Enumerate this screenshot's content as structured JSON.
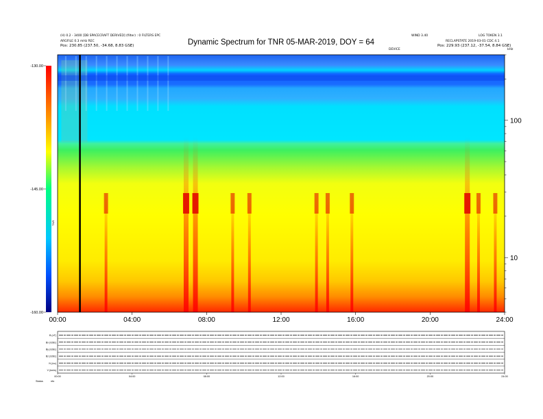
{
  "header": {
    "title": "Dynamic Spectrum for TNR 05-MAR-2019, DOY = 64",
    "left_line1": "(H) 0.2 - 3400 [DB SPACECRAFT DERIVED] (filter) : 0 FILTERS EPC",
    "left_line2": "ARGFILE 0.3 mHz REC",
    "left_pos": "Pos:    230.85 (237.50, -34.68, 8.83 GSE)",
    "right_code1": "WIND 3.40",
    "right_code2": "LOG TOKEN 3.1",
    "right_line2": "RECLAPSTATE 2019-03-01 CDC 4.1",
    "right_pos": "Pos:    229.93 (237.12, -37.54, 8.84 GSE)",
    "center_small": "DEVICE",
    "right_axis_unit": "kHz"
  },
  "colorbar": {
    "ticks": [
      "-130.00",
      "-145.00",
      "-160.00"
    ],
    "label": "TNR"
  },
  "chart_data": [
    {
      "type": "heatmap",
      "title": "Dynamic Spectrum for TNR 05-MAR-2019, DOY = 64",
      "x_ticks": [
        "00:00",
        "04:00",
        "08:00",
        "12:00",
        "16:00",
        "20:00",
        "24:00"
      ],
      "xlim": [
        0,
        24
      ],
      "y_ticks": [
        "100",
        "10"
      ],
      "y_scale": "log",
      "ylim": [
        4,
        300
      ],
      "colorbar_range": [
        -160,
        -130
      ],
      "colorbar_ticks": [
        -130,
        -145,
        -160
      ],
      "colormap": [
        "#000080",
        "#0050ff",
        "#00c8ff",
        "#00ff80",
        "#ffff00",
        "#ff8000",
        "#ff0000"
      ],
      "marker_line_time_hours": 1.2,
      "features": [
        {
          "label": "blue band",
          "freq_khz": [
            200,
            300
          ]
        },
        {
          "label": "cyan band",
          "freq_khz": [
            55,
            200
          ]
        },
        {
          "label": "green band",
          "freq_khz": [
            30,
            55
          ]
        },
        {
          "label": "yellow band",
          "freq_khz": [
            7,
            30
          ]
        },
        {
          "label": "orange-red band",
          "freq_khz": [
            4,
            7
          ]
        }
      ],
      "bursts_hours": [
        2.6,
        6.9,
        7.4,
        9.4,
        10.3,
        13.9,
        14.5,
        15.8,
        22.0,
        22.6,
        23.5
      ]
    },
    {
      "type": "line",
      "title": "",
      "panels": [
        "B (nT)",
        "Bx (GSE)",
        "By (GSE)",
        "Bz (GSE)",
        "N (/cc)",
        "V (km/s)"
      ],
      "x_ticks": [
        "00:00",
        "04:00",
        "08:00",
        "12:00",
        "16:00",
        "20:00",
        "24:00"
      ],
      "xlim": [
        0,
        24
      ]
    }
  ],
  "footer": {
    "left_label": "Status",
    "left_value": "nfo"
  }
}
